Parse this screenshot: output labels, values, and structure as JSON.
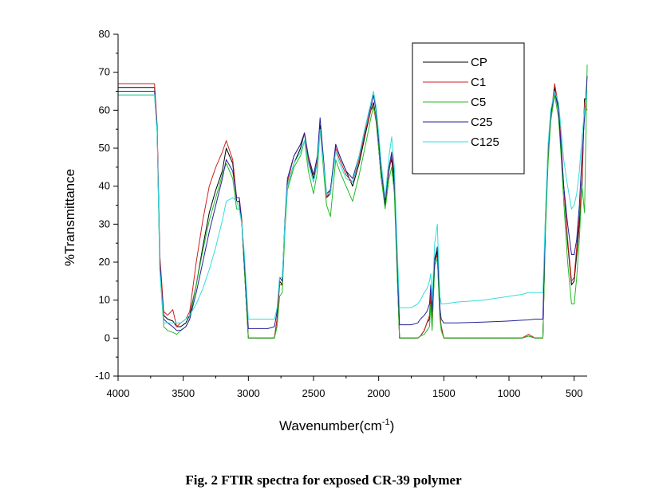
{
  "caption": "Fig. 2 FTIR spectra for exposed CR-39 polymer",
  "chart_data": {
    "type": "line",
    "xlabel": "Wavenumber(cm",
    "xlabel_sup": "-1",
    "xlabel_suffix": ")",
    "ylabel": "%Transmittance",
    "xlim": [
      4000,
      400
    ],
    "ylim": [
      -10,
      80
    ],
    "x_reversed": true,
    "xticks": [
      4000,
      3500,
      3000,
      2500,
      2000,
      1500,
      1000,
      500
    ],
    "yticks": [
      -10,
      0,
      10,
      20,
      30,
      40,
      50,
      60,
      70,
      80
    ],
    "legend_position": "top-right",
    "grid": false,
    "series": [
      {
        "name": "CP",
        "color": "#000000",
        "x": [
          4000,
          3720,
          3700,
          3680,
          3650,
          3620,
          3580,
          3550,
          3520,
          3480,
          3450,
          3400,
          3350,
          3300,
          3250,
          3200,
          3170,
          3120,
          3090,
          3070,
          3050,
          3030,
          3000,
          2960,
          2900,
          2850,
          2800,
          2780,
          2760,
          2740,
          2720,
          2700,
          2650,
          2600,
          2570,
          2540,
          2500,
          2470,
          2450,
          2430,
          2400,
          2370,
          2330,
          2300,
          2250,
          2200,
          2150,
          2100,
          2060,
          2040,
          2020,
          2000,
          1980,
          1950,
          1920,
          1900,
          1880,
          1860,
          1840,
          1820,
          1800,
          1750,
          1700,
          1680,
          1650,
          1630,
          1610,
          1600,
          1590,
          1570,
          1550,
          1540,
          1530,
          1520,
          1500,
          1400,
          1200,
          1000,
          900,
          850,
          800,
          780,
          760,
          740,
          720,
          700,
          680,
          650,
          620,
          600,
          580,
          550,
          520,
          500,
          480,
          460,
          440,
          420,
          400
        ],
        "y": [
          66,
          66,
          55,
          20,
          6,
          5,
          4.5,
          3,
          3,
          4,
          6,
          14,
          24,
          33,
          39,
          44,
          50,
          46,
          36,
          36,
          30,
          18,
          0,
          0,
          0,
          0,
          0,
          5,
          15,
          14,
          30,
          40,
          46,
          50,
          54,
          47,
          42,
          46,
          56,
          49,
          37,
          38,
          51,
          48,
          44,
          40,
          46,
          54,
          60,
          62,
          58,
          50,
          42,
          35,
          45,
          47,
          40,
          20,
          0,
          0,
          0,
          0,
          0,
          0.5,
          2,
          4,
          5,
          10,
          3,
          20,
          23,
          15,
          6,
          3,
          0,
          0,
          0,
          0,
          0,
          0.5,
          0,
          0,
          0,
          0,
          30,
          48,
          58,
          66,
          60,
          50,
          40,
          25,
          14,
          15,
          22,
          30,
          40,
          63,
          63
        ]
      },
      {
        "name": "C1",
        "color": "#cc2222",
        "x": [
          4000,
          3720,
          3700,
          3680,
          3650,
          3620,
          3580,
          3550,
          3520,
          3480,
          3450,
          3400,
          3350,
          3300,
          3250,
          3200,
          3170,
          3120,
          3090,
          3070,
          3050,
          3030,
          3000,
          2960,
          2900,
          2850,
          2800,
          2780,
          2760,
          2740,
          2720,
          2700,
          2650,
          2600,
          2570,
          2540,
          2500,
          2470,
          2450,
          2430,
          2400,
          2370,
          2330,
          2300,
          2250,
          2200,
          2150,
          2100,
          2060,
          2040,
          2020,
          2000,
          1980,
          1950,
          1920,
          1900,
          1880,
          1860,
          1840,
          1820,
          1800,
          1750,
          1700,
          1680,
          1650,
          1630,
          1610,
          1600,
          1590,
          1570,
          1550,
          1540,
          1530,
          1520,
          1500,
          1400,
          1200,
          1000,
          900,
          850,
          800,
          780,
          760,
          740,
          720,
          700,
          680,
          650,
          620,
          600,
          580,
          550,
          520,
          500,
          480,
          460,
          440,
          420,
          400
        ],
        "y": [
          67,
          67,
          56,
          22,
          7,
          6,
          7.5,
          3,
          4,
          5,
          7,
          20,
          31,
          40,
          45,
          49,
          52,
          47,
          37,
          37,
          31,
          18,
          0,
          0,
          0,
          0,
          0,
          5,
          14,
          14,
          30,
          41,
          48,
          51,
          54,
          47,
          43,
          47,
          55,
          48,
          37,
          39,
          50,
          47,
          43,
          41,
          47,
          55,
          60,
          61,
          57,
          50,
          42,
          36,
          44,
          48,
          42,
          20,
          0,
          0,
          0,
          0,
          0,
          0.5,
          2,
          4,
          6,
          12,
          4,
          20,
          22,
          14,
          6,
          3,
          0,
          0,
          0,
          0,
          0,
          1,
          0,
          0,
          0,
          0,
          30,
          49,
          58,
          67,
          61,
          52,
          40,
          26,
          15,
          16,
          24,
          32,
          42,
          62,
          60
        ]
      },
      {
        "name": "C5",
        "color": "#22bb22",
        "x": [
          4000,
          3720,
          3700,
          3680,
          3650,
          3620,
          3580,
          3550,
          3520,
          3480,
          3450,
          3400,
          3350,
          3300,
          3250,
          3200,
          3170,
          3120,
          3090,
          3070,
          3050,
          3030,
          3000,
          2960,
          2900,
          2850,
          2800,
          2780,
          2760,
          2740,
          2720,
          2700,
          2650,
          2600,
          2570,
          2540,
          2500,
          2470,
          2450,
          2430,
          2400,
          2370,
          2330,
          2300,
          2250,
          2200,
          2150,
          2100,
          2060,
          2040,
          2020,
          2000,
          1980,
          1950,
          1920,
          1900,
          1880,
          1860,
          1840,
          1820,
          1800,
          1750,
          1700,
          1680,
          1650,
          1630,
          1610,
          1600,
          1590,
          1570,
          1550,
          1540,
          1530,
          1520,
          1500,
          1400,
          1200,
          1000,
          900,
          850,
          800,
          780,
          760,
          740,
          720,
          700,
          680,
          650,
          620,
          600,
          580,
          550,
          520,
          500,
          480,
          460,
          440,
          420,
          400
        ],
        "y": [
          64,
          64,
          54,
          18,
          3,
          2,
          1.5,
          1,
          2,
          3,
          5,
          14,
          23,
          31,
          37,
          43,
          46,
          42,
          34,
          34,
          30,
          18,
          0,
          0,
          0,
          0,
          0,
          3,
          11,
          12,
          28,
          39,
          45,
          48,
          52,
          44,
          38,
          44,
          55,
          47,
          35,
          32,
          47,
          44,
          40,
          36,
          43,
          51,
          58,
          61,
          58,
          50,
          42,
          34,
          42,
          45,
          38,
          19,
          0,
          0,
          0,
          0,
          0,
          0.5,
          1,
          2,
          3,
          9,
          2,
          19,
          21,
          13,
          5,
          2,
          0,
          0,
          0,
          0,
          0,
          0.5,
          0,
          0,
          0,
          0,
          28,
          46,
          57,
          64,
          58,
          48,
          36,
          20,
          9,
          9,
          16,
          26,
          40,
          33,
          72
        ]
      },
      {
        "name": "C25",
        "color": "#22229a",
        "x": [
          4000,
          3720,
          3700,
          3680,
          3650,
          3620,
          3580,
          3550,
          3520,
          3480,
          3450,
          3400,
          3350,
          3300,
          3250,
          3200,
          3170,
          3120,
          3090,
          3070,
          3050,
          3030,
          3000,
          2960,
          2900,
          2850,
          2800,
          2780,
          2760,
          2740,
          2720,
          2700,
          2650,
          2600,
          2570,
          2540,
          2500,
          2470,
          2450,
          2430,
          2400,
          2370,
          2330,
          2300,
          2250,
          2200,
          2150,
          2100,
          2060,
          2040,
          2020,
          2000,
          1980,
          1950,
          1920,
          1900,
          1880,
          1860,
          1840,
          1820,
          1800,
          1750,
          1700,
          1680,
          1650,
          1630,
          1610,
          1600,
          1590,
          1570,
          1550,
          1540,
          1530,
          1520,
          1500,
          1400,
          1200,
          1000,
          900,
          850,
          800,
          780,
          760,
          740,
          720,
          700,
          680,
          650,
          620,
          600,
          580,
          550,
          520,
          500,
          480,
          460,
          440,
          420,
          400
        ],
        "y": [
          65,
          65,
          55,
          20,
          5,
          4,
          3,
          2,
          2,
          3,
          5,
          12,
          20,
          28,
          35,
          42,
          47,
          44,
          37,
          37,
          30,
          20,
          2.5,
          2.5,
          2.5,
          2.5,
          3,
          7,
          16,
          15,
          31,
          42,
          48,
          51,
          54,
          48,
          43,
          48,
          58,
          50,
          38,
          39,
          51,
          48,
          44,
          42,
          48,
          56,
          61,
          64,
          60,
          52,
          44,
          36,
          45,
          49,
          43,
          23,
          3.5,
          3.5,
          3.5,
          3.5,
          4,
          5,
          6,
          7,
          9,
          14,
          7,
          21,
          24,
          16,
          8,
          5,
          4,
          4,
          4.2,
          4.5,
          4.7,
          4.8,
          5,
          5,
          5,
          5,
          32,
          50,
          59,
          65,
          60,
          50,
          40,
          30,
          22,
          22,
          26,
          35,
          48,
          58,
          69
        ]
      },
      {
        "name": "C125",
        "color": "#33dddd",
        "x": [
          4000,
          3720,
          3700,
          3680,
          3650,
          3620,
          3580,
          3550,
          3520,
          3480,
          3450,
          3400,
          3350,
          3300,
          3250,
          3200,
          3170,
          3120,
          3090,
          3070,
          3050,
          3030,
          3000,
          2960,
          2900,
          2850,
          2800,
          2780,
          2760,
          2740,
          2720,
          2700,
          2650,
          2600,
          2570,
          2540,
          2500,
          2470,
          2450,
          2430,
          2400,
          2370,
          2330,
          2300,
          2250,
          2200,
          2150,
          2100,
          2060,
          2040,
          2020,
          2000,
          1980,
          1950,
          1920,
          1900,
          1880,
          1860,
          1840,
          1820,
          1800,
          1750,
          1700,
          1680,
          1650,
          1630,
          1610,
          1600,
          1590,
          1570,
          1550,
          1540,
          1530,
          1520,
          1500,
          1400,
          1200,
          1000,
          900,
          850,
          800,
          780,
          760,
          740,
          720,
          700,
          680,
          650,
          620,
          600,
          580,
          550,
          520,
          500,
          480,
          460,
          440,
          420,
          400
        ],
        "y": [
          64,
          64,
          54,
          18,
          4,
          4,
          4,
          4,
          4,
          5,
          6,
          9,
          13,
          18,
          24,
          31,
          36,
          37,
          36,
          34,
          30,
          22,
          5,
          5,
          5,
          5,
          5,
          8,
          16,
          16,
          30,
          40,
          46,
          49,
          52,
          46,
          41,
          46,
          55,
          48,
          38,
          38,
          49,
          46,
          42,
          41,
          48,
          56,
          62,
          65,
          61,
          54,
          46,
          37,
          48,
          53,
          45,
          26,
          8,
          8,
          8,
          8,
          9,
          10,
          12,
          13,
          15,
          17,
          10,
          25,
          30,
          20,
          11,
          9,
          9,
          9.5,
          10,
          11,
          11.5,
          12,
          12,
          12,
          12,
          12,
          33,
          51,
          60,
          65,
          62,
          55,
          47,
          40,
          34,
          35,
          38,
          44,
          53,
          60,
          65
        ]
      }
    ]
  }
}
